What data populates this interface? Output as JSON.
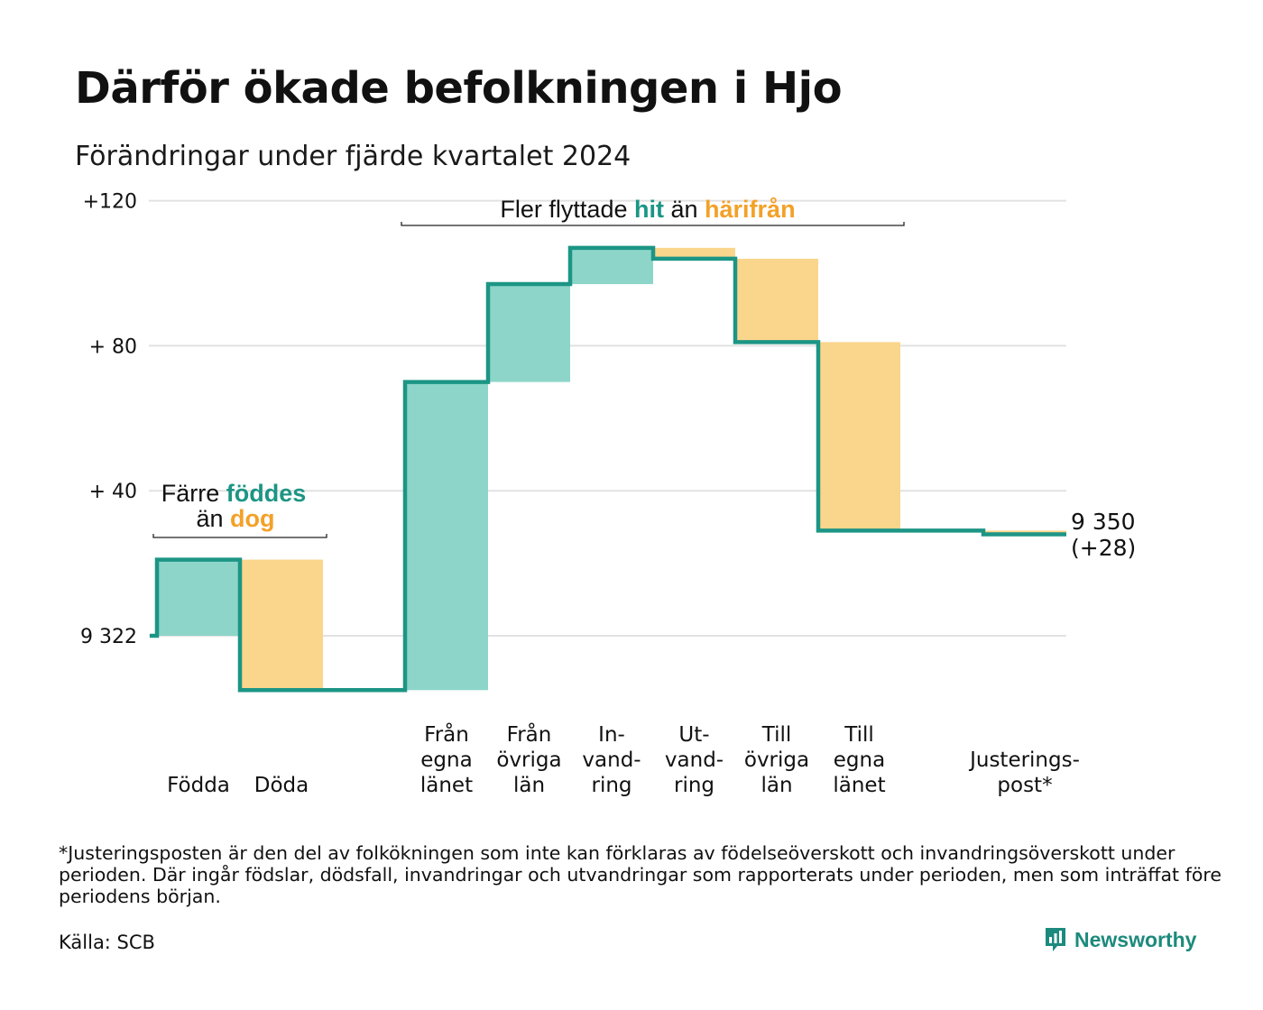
{
  "title": "Därför ökade befolkningen i Hjo",
  "subtitle": "Förändringar under fjärde kvartalet 2024",
  "colors": {
    "increase": "#8dd5c9",
    "decrease": "#fad58c",
    "line": "#1c9585",
    "increase_text": "#1c9585",
    "decrease_text": "#f3a128",
    "grid": "#e2e2e2"
  },
  "chart_data": {
    "type": "waterfall",
    "baseline_value": 9322,
    "ylim": [
      -15,
      120
    ],
    "y_ticks": [
      {
        "value": 0,
        "label": "9 322"
      },
      {
        "value": 40,
        "label": "+ 40"
      },
      {
        "value": 80,
        "label": "+ 80"
      },
      {
        "value": 120,
        "label": "+120"
      }
    ],
    "steps": [
      {
        "label": [
          "Födda"
        ],
        "change": 21
      },
      {
        "label": [
          "Döda"
        ],
        "change": -36
      },
      {
        "label": [
          "Från",
          "egna",
          "länet"
        ],
        "change": 85
      },
      {
        "label": [
          "Från",
          "övriga",
          "län"
        ],
        "change": 27
      },
      {
        "label": [
          "In-",
          "vand-",
          "ring"
        ],
        "change": 10
      },
      {
        "label": [
          "Ut-",
          "vand-",
          "ring"
        ],
        "change": -3
      },
      {
        "label": [
          "Till",
          "övriga",
          "län"
        ],
        "change": -23
      },
      {
        "label": [
          "Till",
          "egna",
          "länet"
        ],
        "change": -52
      },
      {
        "label": [
          "Justerings-",
          "post*"
        ],
        "change": -1
      }
    ],
    "end_label": [
      "9 350",
      "(+28)"
    ],
    "annotations": [
      {
        "parts": [
          {
            "text": "Färre ",
            "style": "normal"
          },
          {
            "text": "föddes",
            "style": "increase"
          }
        ],
        "line2": [
          {
            "text": "än ",
            "style": "normal"
          },
          {
            "text": "dog",
            "style": "decrease"
          }
        ]
      },
      {
        "parts": [
          {
            "text": "Fler flyttade ",
            "style": "normal"
          },
          {
            "text": "hit",
            "style": "increase"
          },
          {
            "text": "  än ",
            "style": "normal"
          },
          {
            "text": "härifrån",
            "style": "decrease"
          }
        ]
      }
    ]
  },
  "footnote": "*Justeringsposten är den del av folkökningen som inte kan förklaras av födelseöverskott och invandringsöverskott under perioden. Där ingår födslar, dödsfall, invandringar och utvandringar som rapporterats under perioden, men som inträffat före periodens början.",
  "source": "Källa: SCB",
  "brand": "Newsworthy",
  "brand_icon": "bar-chart-speech-icon"
}
